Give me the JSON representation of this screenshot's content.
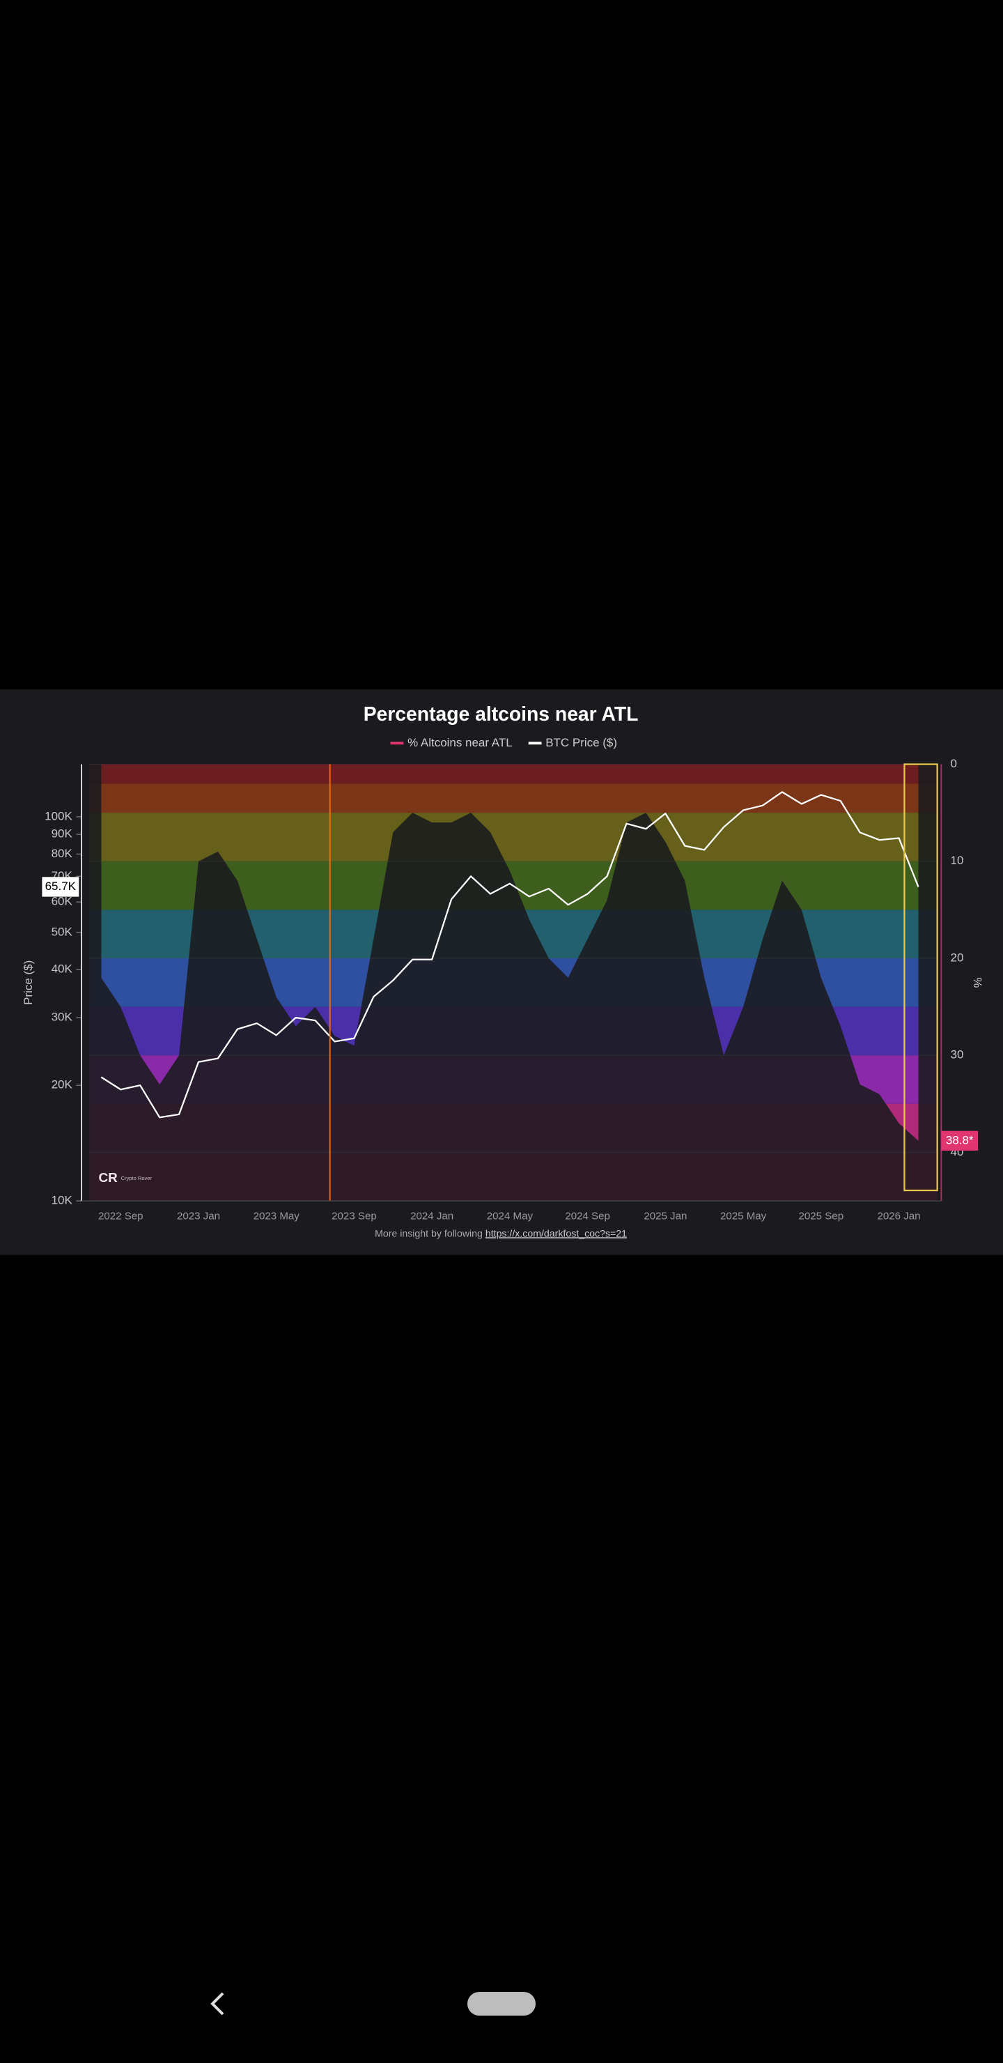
{
  "chart_data": {
    "type": "area",
    "title": "Percentage altcoins near ATL",
    "x": [
      null,
      "2022 Sep",
      null,
      null,
      null,
      "2023 Jan",
      null,
      null,
      null,
      "2023 May",
      null,
      null,
      null,
      "2023 Sep",
      null,
      null,
      null,
      "2024 Jan",
      null,
      null,
      null,
      "2024 May",
      null,
      null,
      null,
      "2024 Sep",
      null,
      null,
      null,
      "2025 Jan",
      null,
      null,
      null,
      "2025 May",
      null,
      null,
      null,
      "2025 Sep",
      null,
      null,
      null,
      "2026 Jan",
      null
    ],
    "series": [
      {
        "name": "% Altcoins near ATL",
        "color": "#e0356e",
        "axis": "y2",
        "values": [
          22,
          25,
          30,
          33,
          30,
          10,
          9,
          12,
          18,
          24,
          27,
          25,
          28,
          29,
          18,
          7,
          5,
          6,
          6,
          5,
          7,
          11,
          16,
          20,
          22,
          18,
          14,
          6,
          5,
          8,
          12,
          22,
          30,
          25,
          18,
          12,
          15,
          22,
          27,
          33,
          34,
          37,
          38.8
        ]
      },
      {
        "name": "BTC Price ($)",
        "color": "#ffffff",
        "values": [
          21000,
          19500,
          20000,
          16500,
          16800,
          23000,
          23500,
          28000,
          29000,
          27000,
          30000,
          29500,
          26000,
          26500,
          34000,
          37500,
          42500,
          42500,
          61000,
          70000,
          63000,
          67000,
          62000,
          65000,
          59000,
          63000,
          70000,
          96000,
          93000,
          102000,
          84000,
          82000,
          94000,
          104000,
          107000,
          116000,
          108000,
          114000,
          110000,
          91000,
          87000,
          88000,
          65700
        ]
      }
    ],
    "ylabel": "Price ($)",
    "y2label": "%",
    "ylog": true,
    "ylim": [
      10000,
      137000
    ],
    "yticks": [
      {
        "value": 10000,
        "label": "10K"
      },
      {
        "value": 20000,
        "label": "20K"
      },
      {
        "value": 30000,
        "label": "30K"
      },
      {
        "value": 40000,
        "label": "40K"
      },
      {
        "value": 50000,
        "label": "50K"
      },
      {
        "value": 60000,
        "label": "60K"
      },
      {
        "value": 70000,
        "label": "70K"
      },
      {
        "value": 80000,
        "label": "80K"
      },
      {
        "value": 90000,
        "label": "90K"
      },
      {
        "value": 100000,
        "label": "100K"
      }
    ],
    "y2lim": [
      45,
      0
    ],
    "y2ticks": [
      0,
      10,
      20,
      30,
      40
    ],
    "bands": [
      {
        "from": 0,
        "to": 2,
        "color": "#6b1d20"
      },
      {
        "from": 2,
        "to": 5,
        "color": "#7a3616"
      },
      {
        "from": 5,
        "to": 10,
        "color": "#66601a"
      },
      {
        "from": 10,
        "to": 15,
        "color": "#3d5e1c"
      },
      {
        "from": 15,
        "to": 20,
        "color": "#23606e"
      },
      {
        "from": 20,
        "to": 25,
        "color": "#2f4fa0"
      },
      {
        "from": 25,
        "to": 30,
        "color": "#4a2fa8"
      },
      {
        "from": 30,
        "to": 35,
        "color": "#8a2aa8"
      },
      {
        "from": 35,
        "to": 40,
        "color": "#b02a7a"
      },
      {
        "from": 40,
        "to": 45,
        "color": "#c0245a"
      }
    ],
    "annotations": [
      {
        "text": "65.7K",
        "value": 65700,
        "axis": "y",
        "color": "#ffffff"
      },
      {
        "text": "38.8*",
        "value": 38.8,
        "axis": "y2",
        "color": "#e0356e"
      }
    ],
    "source": {
      "text": "More insight by following",
      "link": "https://x.com/darkfost_coc?s=21"
    },
    "logo": "Crypto Rover"
  }
}
